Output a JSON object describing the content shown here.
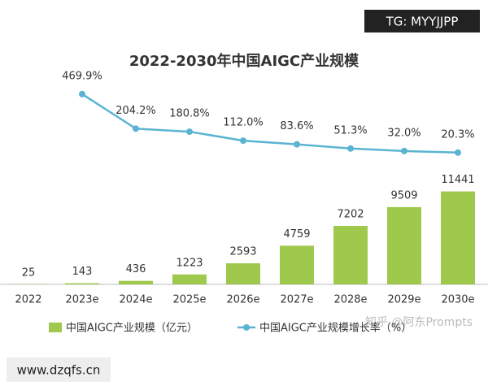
{
  "chart_data": {
    "type": "bar",
    "title": "2022-2030年中国AIGC产业规模",
    "categories": [
      "2022",
      "2023e",
      "2024e",
      "2025e",
      "2026e",
      "2027e",
      "2028e",
      "2029e",
      "2030e"
    ],
    "series": [
      {
        "name": "中国AIGC产业规模（亿元）",
        "type": "bar",
        "color": "#9fc94c",
        "values": [
          25,
          143,
          436,
          1223,
          2593,
          4759,
          7202,
          9509,
          11441
        ]
      },
      {
        "name": "中国AIGC产业规模增长率（%）",
        "type": "line",
        "axis": "y2",
        "color": "#5ab4d1",
        "values": [
          null,
          469.9,
          204.2,
          180.8,
          112.0,
          83.6,
          51.3,
          32.0,
          20.3
        ],
        "value_labels": [
          null,
          "469.9%",
          "204.2%",
          "180.8%",
          "112.0%",
          "83.6%",
          "51.3%",
          "32.0%",
          "20.3%"
        ]
      }
    ],
    "ylim": [
      0,
      12000
    ],
    "y2lim": [
      0,
      500
    ],
    "legend": "bottom"
  },
  "watermarks": [
    "TG: MYYJJPP",
    "www.dzqfs.cn",
    "知乎 @阿东Prompts"
  ]
}
